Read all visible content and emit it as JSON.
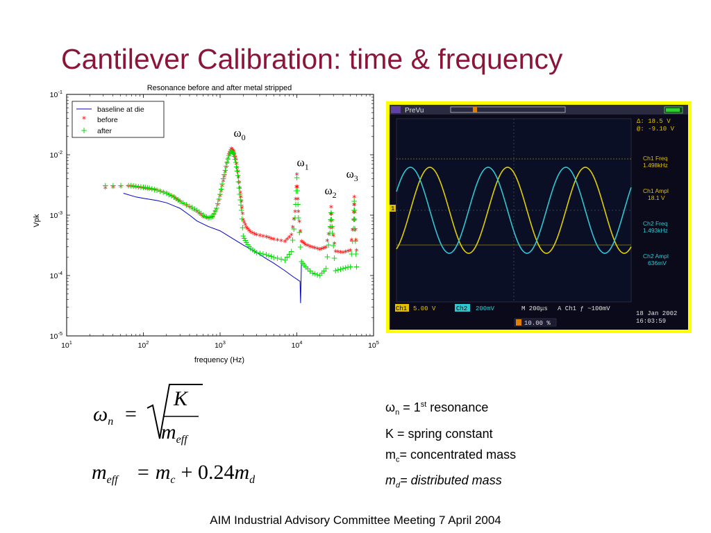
{
  "slide": {
    "title": "Cantilever Calibration: time & frequency",
    "footer": "AIM Industrial Advisory Committee Meeting 7 April 2004"
  },
  "chart_data": {
    "type": "scatter",
    "title": "Resonance before and after metal stripped",
    "xlabel": "frequency (Hz)",
    "ylabel": "Vpk",
    "xscale": "log",
    "yscale": "log",
    "xlim": [
      10,
      100000
    ],
    "ylim": [
      1e-05,
      0.1
    ],
    "x_ticks": [
      "10^1",
      "10^2",
      "10^3",
      "10^4",
      "10^5"
    ],
    "y_ticks": [
      "10^-5",
      "10^-4",
      "10^-3",
      "10^-2",
      "10^-1"
    ],
    "legend_position": "top-left",
    "series": [
      {
        "name": "baseline at die",
        "style": "line",
        "color": "#0000cc",
        "x": [
          55,
          80,
          100,
          150,
          200,
          300,
          400,
          500,
          700,
          1000,
          1500,
          2000,
          3000,
          4000,
          5000,
          7000,
          9000,
          11000,
          11200,
          11500
        ],
        "y": [
          0.0023,
          0.002,
          0.0019,
          0.00175,
          0.0016,
          0.0013,
          0.001,
          0.0008,
          0.00065,
          0.00055,
          0.0004,
          0.00032,
          0.00024,
          0.00019,
          0.00016,
          0.00012,
          9.5e-05,
          8e-05,
          3.5e-05,
          0.00018
        ]
      },
      {
        "name": "before",
        "style": "star",
        "color": "#ff0000",
        "x": [
          32,
          64,
          80,
          100,
          120,
          150,
          200,
          250,
          300,
          400,
          500,
          600,
          700,
          800,
          900,
          1000,
          1100,
          1200,
          1300,
          1400,
          1500,
          1600,
          1700,
          1800,
          1900,
          2000,
          2200,
          2500,
          3000,
          4000,
          5000,
          7000,
          8500,
          9500,
          10000,
          10500,
          11500,
          13000,
          16000,
          20000,
          24000,
          27000,
          28000,
          29000,
          32000,
          40000,
          50000,
          55000,
          56000,
          57000,
          60000
        ],
        "y": [
          0.0027,
          0.0029,
          0.0028,
          0.0027,
          0.0026,
          0.0025,
          0.0022,
          0.0019,
          0.0016,
          0.0013,
          0.0011,
          0.0009,
          0.00085,
          0.0009,
          0.0012,
          0.002,
          0.0035,
          0.006,
          0.0095,
          0.012,
          0.011,
          0.008,
          0.005,
          0.0027,
          0.0016,
          0.0008,
          0.0006,
          0.0005,
          0.00045,
          0.00042,
          0.00038,
          0.00035,
          0.00045,
          0.0011,
          0.0045,
          0.0011,
          0.00035,
          0.00031,
          0.00028,
          0.00026,
          0.00028,
          0.0006,
          0.0013,
          0.0006,
          0.00024,
          0.00023,
          0.00025,
          0.0008,
          0.0019,
          0.0008,
          0.00025
        ]
      },
      {
        "name": "after",
        "style": "plus",
        "color": "#00dd00",
        "x": [
          32,
          64,
          80,
          100,
          120,
          150,
          200,
          250,
          300,
          400,
          500,
          600,
          700,
          800,
          900,
          1000,
          1100,
          1200,
          1300,
          1400,
          1500,
          1600,
          1700,
          1800,
          1900,
          2000,
          2200,
          2500,
          3000,
          4000,
          5000,
          7000,
          8500,
          9500,
          10000,
          10500,
          11500,
          13000,
          16000,
          20000,
          24000,
          27000,
          28000,
          29000,
          32000,
          40000,
          50000,
          55000,
          56000,
          57000,
          60000
        ],
        "y": [
          0.0031,
          0.0031,
          0.003,
          0.0029,
          0.0028,
          0.0026,
          0.0023,
          0.002,
          0.0017,
          0.0014,
          0.0012,
          0.001,
          0.0009,
          0.00095,
          0.0013,
          0.0022,
          0.004,
          0.0065,
          0.0098,
          0.0115,
          0.0105,
          0.0075,
          0.0045,
          0.0022,
          0.0012,
          0.00045,
          0.00035,
          0.00028,
          0.00024,
          0.00022,
          0.0002,
          0.00018,
          0.00025,
          0.0009,
          0.0042,
          0.0009,
          0.00017,
          0.00014,
          0.00011,
          0.0001,
          0.00013,
          0.0005,
          0.0011,
          0.0005,
          0.00012,
          0.00013,
          0.00014,
          0.0006,
          0.0017,
          0.0006,
          0.00014
        ]
      }
    ],
    "annotations": [
      {
        "text": "ω",
        "sub": "0",
        "x": 1500,
        "y": 0.02
      },
      {
        "text": "ω",
        "sub": "1",
        "x": 10000,
        "y": 0.0065
      },
      {
        "text": "ω",
        "sub": "2",
        "x": 23000,
        "y": 0.0022
      },
      {
        "text": "ω",
        "sub": "3",
        "x": 44000,
        "y": 0.0042
      }
    ]
  },
  "scope": {
    "header_label": "PreVu",
    "readout_delta": "Δ:  18.5 V",
    "readout_at": "@:  -9.10 V",
    "ch1_freq_label": "Ch1 Freq",
    "ch1_freq_value": "1.498kHz",
    "ch1_ampl_label": "Ch1 Ampl",
    "ch1_ampl_value": "18.1 V",
    "ch2_freq_label": "Ch2 Freq",
    "ch2_freq_value": "1.493kHz",
    "ch2_ampl_label": "Ch2 Ampl",
    "ch2_ampl_value": "636mV",
    "bottom_ch1_label": "Ch1",
    "bottom_ch1_value": "5.00 V",
    "bottom_ch2_label": "Ch2",
    "bottom_ch2_value": "200mV",
    "bottom_time": "M 200μs",
    "bottom_trigger": "A  Ch1  ƒ  ~100mV",
    "trigger_percent": "10.00 %",
    "date": "18 Jan  2002",
    "time": "16:03:59",
    "colors": {
      "ch1": "#e0d000",
      "ch2": "#30c8d0",
      "label": "#e0c000"
    }
  },
  "definitions": {
    "line1_sym": "ω",
    "line1_sub": "n",
    "line1_mid": " = 1",
    "line1_sup": "st",
    "line1_end": " resonance",
    "line2": "K = spring constant",
    "line3_sym": "m",
    "line3_sub": "c",
    "line3_end": "= concentrated mass",
    "line4_sym": "m",
    "line4_sub": "d",
    "line4_end": "= distributed mass"
  },
  "equations": {
    "omega": "ω",
    "n": "n",
    "equals": "=",
    "K": "K",
    "m": "m",
    "eff": "eff",
    "rhs2": "= m",
    "c": "c",
    "plus": "+ 0.24",
    "md": "m",
    "d": "d"
  }
}
